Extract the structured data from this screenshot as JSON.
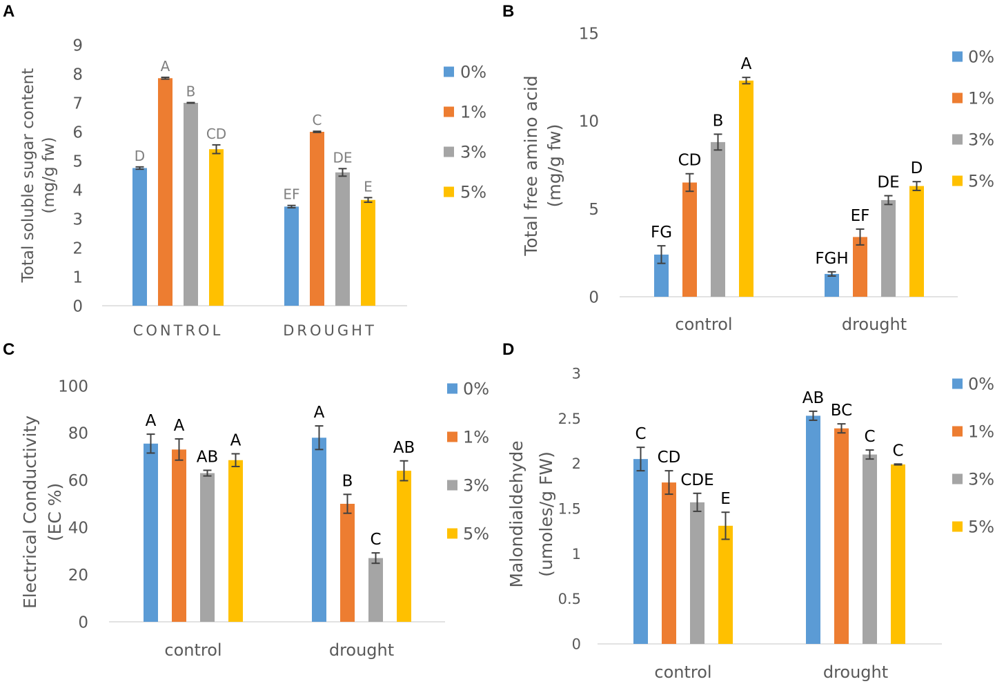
{
  "colors": {
    "0%": "#5B9BD5",
    "1%": "#ED7D31",
    "3%": "#A5A5A5",
    "5%": "#FFC000"
  },
  "chart_data": [
    {
      "panel": "A",
      "type": "bar",
      "categories": [
        "CONTROL",
        "DROUGHT"
      ],
      "ylabel": "Total soluble sugar content (mg/g fw)",
      "ylabel_lines": [
        "Total soluble sugar content",
        "(mg/g fw)"
      ],
      "ylim": [
        0,
        9
      ],
      "yticks": [
        0,
        1,
        2,
        3,
        4,
        5,
        6,
        7,
        8,
        9
      ],
      "legend": [
        "0%",
        "1%",
        "3%",
        "5%"
      ],
      "legend_position": "right",
      "series": [
        {
          "name": "0%",
          "values": [
            4.75,
            3.42
          ],
          "errors": [
            0.04,
            0.04
          ],
          "labels": [
            "D",
            "EF"
          ]
        },
        {
          "name": "1%",
          "values": [
            7.85,
            6.0
          ],
          "errors": [
            0.03,
            0.02
          ],
          "labels": [
            "A",
            "C"
          ]
        },
        {
          "name": "3%",
          "values": [
            7.0,
            4.6
          ],
          "errors": [
            0.01,
            0.13
          ],
          "labels": [
            "B",
            "DE"
          ]
        },
        {
          "name": "5%",
          "values": [
            5.4,
            3.65
          ],
          "errors": [
            0.15,
            0.08
          ],
          "labels": [
            "CD",
            "E"
          ]
        }
      ]
    },
    {
      "panel": "B",
      "type": "bar",
      "categories": [
        "control",
        "drought"
      ],
      "ylabel": "Total free amino acid (mg/g fw)",
      "ylabel_lines": [
        "Total free amino acid",
        "(mg/g fw)"
      ],
      "ylim": [
        0,
        15
      ],
      "yticks": [
        0,
        5,
        10,
        15
      ],
      "legend": [
        "0%",
        "1%",
        "3%",
        "5%"
      ],
      "legend_position": "right",
      "series": [
        {
          "name": "0%",
          "values": [
            2.4,
            1.3
          ],
          "errors": [
            0.5,
            0.12
          ],
          "labels": [
            "FG",
            "FGH"
          ]
        },
        {
          "name": "1%",
          "values": [
            6.5,
            3.4
          ],
          "errors": [
            0.5,
            0.45
          ],
          "labels": [
            "CD",
            "EF"
          ]
        },
        {
          "name": "3%",
          "values": [
            8.8,
            5.5
          ],
          "errors": [
            0.45,
            0.25
          ],
          "labels": [
            "B",
            "DE"
          ]
        },
        {
          "name": "5%",
          "values": [
            12.3,
            6.3
          ],
          "errors": [
            0.18,
            0.25
          ],
          "labels": [
            "A",
            "D"
          ]
        }
      ]
    },
    {
      "panel": "C",
      "type": "bar",
      "categories": [
        "control",
        "drought"
      ],
      "ylabel": "Electrical Conductivity (EC %)",
      "ylabel_lines": [
        "Electrical Conductivity",
        "(EC %)"
      ],
      "ylim": [
        0,
        100
      ],
      "yticks": [
        0,
        20,
        40,
        60,
        80,
        100
      ],
      "legend": [
        "0%",
        "1%",
        "3%",
        "5%"
      ],
      "legend_position": "right",
      "series": [
        {
          "name": "0%",
          "values": [
            75.5,
            78.0
          ],
          "errors": [
            4.0,
            5.0
          ],
          "labels": [
            "A",
            "A"
          ]
        },
        {
          "name": "1%",
          "values": [
            73.0,
            50.0
          ],
          "errors": [
            4.5,
            4.0
          ],
          "labels": [
            "A",
            "B"
          ]
        },
        {
          "name": "3%",
          "values": [
            63.0,
            27.0
          ],
          "errors": [
            1.2,
            2.2
          ],
          "labels": [
            "AB",
            "C"
          ]
        },
        {
          "name": "5%",
          "values": [
            68.5,
            64.0
          ],
          "errors": [
            2.7,
            4.2
          ],
          "labels": [
            "A",
            "AB"
          ]
        }
      ]
    },
    {
      "panel": "D",
      "type": "bar",
      "categories": [
        "control",
        "drought"
      ],
      "ylabel": "Malondialdehyde (umoles/g FW)",
      "ylabel_lines": [
        "Malondialdehyde",
        "(umoles/g FW)"
      ],
      "ylim": [
        0,
        3
      ],
      "yticks": [
        0,
        0.5,
        1,
        1.5,
        2,
        2.5,
        3
      ],
      "legend": [
        "0%",
        "1%",
        "3%",
        "5%"
      ],
      "legend_position": "right",
      "series": [
        {
          "name": "0%",
          "values": [
            2.05,
            2.53
          ],
          "errors": [
            0.13,
            0.05
          ],
          "labels": [
            "C",
            "AB"
          ]
        },
        {
          "name": "1%",
          "values": [
            1.79,
            2.39
          ],
          "errors": [
            0.13,
            0.05
          ],
          "labels": [
            "CD",
            "BC"
          ]
        },
        {
          "name": "3%",
          "values": [
            1.57,
            2.1
          ],
          "errors": [
            0.1,
            0.05
          ],
          "labels": [
            "CDE",
            "C"
          ]
        },
        {
          "name": "5%",
          "values": [
            1.31,
            1.99
          ],
          "errors": [
            0.15,
            0.005
          ],
          "labels": [
            "E",
            "C"
          ]
        }
      ]
    }
  ]
}
